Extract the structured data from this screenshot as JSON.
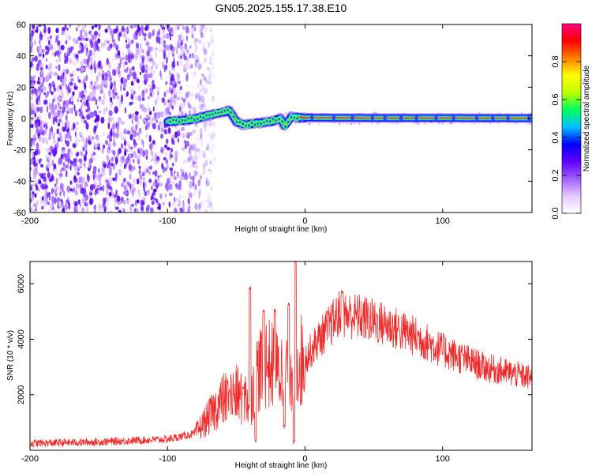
{
  "chart_data": [
    {
      "type": "heatmap",
      "title": "GN05.2025.155.17.38.E10",
      "xlabel": "Height of straight line (km)",
      "ylabel": "Frequency (Hz)",
      "xlim": [
        -200,
        165
      ],
      "ylim": [
        -60,
        60
      ],
      "x_ticks": [
        -200,
        -100,
        0,
        100
      ],
      "x_tick_labels": [
        "-200",
        "-100",
        "0",
        "100"
      ],
      "y_ticks": [
        -60,
        -40,
        -20,
        0,
        20,
        40,
        60
      ],
      "y_tick_labels": [
        "-60",
        "-40",
        "-20",
        "0",
        "20",
        "40",
        "60"
      ],
      "colorbar": {
        "label": "Normalized spectral amplitude",
        "range": [
          0.0,
          1.0
        ],
        "ticks": [
          0.0,
          0.2,
          0.4,
          0.6,
          0.8
        ],
        "tick_labels": [
          "0.0",
          "0.2",
          "0.4",
          "0.6",
          "0.8"
        ],
        "colormap": [
          "#ffffff",
          "#e6c8ff",
          "#a060ff",
          "#6000ff",
          "#0000ff",
          "#00c0ff",
          "#00ff60",
          "#c0ff00",
          "#ffff00",
          "#ff8000",
          "#ff0000",
          "#ff0080"
        ]
      },
      "noise_region_x": [
        -200,
        -75
      ],
      "signal_trace": [
        {
          "x": -100,
          "y": -2
        },
        {
          "x": -85,
          "y": -1
        },
        {
          "x": -75,
          "y": 1
        },
        {
          "x": -65,
          "y": 3
        },
        {
          "x": -55,
          "y": 5
        },
        {
          "x": -50,
          "y": -2
        },
        {
          "x": -45,
          "y": -4
        },
        {
          "x": -35,
          "y": -3
        },
        {
          "x": -25,
          "y": -2
        },
        {
          "x": -18,
          "y": 0
        },
        {
          "x": -15,
          "y": -5
        },
        {
          "x": -10,
          "y": 1
        },
        {
          "x": 0,
          "y": 0.5
        },
        {
          "x": 50,
          "y": 0.3
        },
        {
          "x": 100,
          "y": 0.3
        },
        {
          "x": 165,
          "y": 0.2
        }
      ]
    },
    {
      "type": "line",
      "title": "",
      "xlabel": "Height of straight line (km)",
      "ylabel": "SNR (10 * v/v)",
      "xlim": [
        -200,
        165
      ],
      "ylim": [
        0,
        6800
      ],
      "x_ticks": [
        -200,
        -100,
        0,
        100
      ],
      "x_tick_labels": [
        "-200",
        "-100",
        "0",
        "100"
      ],
      "y_ticks": [
        2000,
        4000,
        6000
      ],
      "y_tick_labels": [
        "2000",
        "4000",
        "6000"
      ],
      "series": [
        {
          "color": "#ee2a2a",
          "envelope": [
            {
              "x": -200,
              "y": 250
            },
            {
              "x": -150,
              "y": 300
            },
            {
              "x": -100,
              "y": 400
            },
            {
              "x": -80,
              "y": 600
            },
            {
              "x": -70,
              "y": 1200
            },
            {
              "x": -60,
              "y": 1800
            },
            {
              "x": -50,
              "y": 2000
            },
            {
              "x": -40,
              "y": 1800
            },
            {
              "x": -35,
              "y": 2800
            },
            {
              "x": -28,
              "y": 3200
            },
            {
              "x": -20,
              "y": 2800
            },
            {
              "x": -10,
              "y": 3000
            },
            {
              "x": 0,
              "y": 3300
            },
            {
              "x": 10,
              "y": 4000
            },
            {
              "x": 25,
              "y": 4900
            },
            {
              "x": 40,
              "y": 4800
            },
            {
              "x": 60,
              "y": 4500
            },
            {
              "x": 80,
              "y": 4100
            },
            {
              "x": 100,
              "y": 3600
            },
            {
              "x": 130,
              "y": 3000
            },
            {
              "x": 165,
              "y": 2600
            }
          ],
          "spikes": [
            {
              "x": -55,
              "y": 2200
            },
            {
              "x": -45,
              "y": 2300
            },
            {
              "x": -40,
              "y": 5900
            },
            {
              "x": -30,
              "y": 5100
            },
            {
              "x": -22,
              "y": 5100
            },
            {
              "x": -12,
              "y": 5300
            },
            {
              "x": -7,
              "y": 6900
            },
            {
              "x": 27,
              "y": 5800
            }
          ],
          "dips": [
            {
              "x": -36,
              "y": 300
            },
            {
              "x": -8,
              "y": 200
            },
            {
              "x": -15,
              "y": 800
            }
          ]
        }
      ]
    }
  ]
}
